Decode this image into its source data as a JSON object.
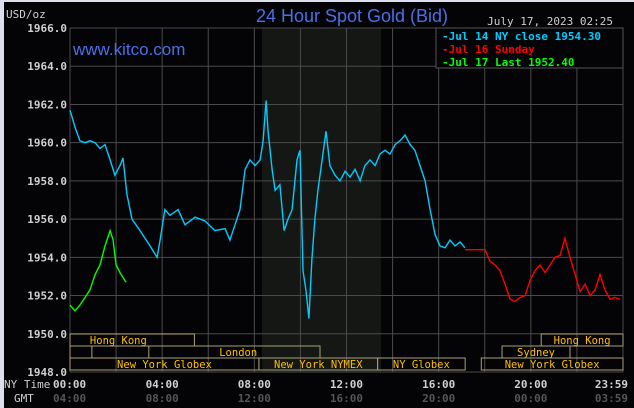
{
  "chart_data": {
    "type": "line",
    "title": "24 Hour Spot Gold (Bid)",
    "watermark": "www.kitco.com",
    "timestamp": "July 17, 2023 02:25",
    "ylabel": "USD/oz",
    "ylim": [
      1948,
      1966
    ],
    "yticks": [
      "1966.0",
      "1964.0",
      "1962.0",
      "1960.0",
      "1958.0",
      "1956.0",
      "1954.0",
      "1952.0",
      "1950.0",
      "1948.0"
    ],
    "xlim_hours": [
      0,
      24
    ],
    "x_row_label": "NY Time",
    "gmt_row_label": "GMT",
    "xticks": [
      {
        "h": 0,
        "ny": "00:00",
        "gmt": "04:00"
      },
      {
        "h": 4,
        "ny": "04:00",
        "gmt": "08:00"
      },
      {
        "h": 8,
        "ny": "08:00",
        "gmt": "12:00"
      },
      {
        "h": 12,
        "ny": "12:00",
        "gmt": "16:00"
      },
      {
        "h": 16,
        "ny": "16:00",
        "gmt": "20:00"
      },
      {
        "h": 20,
        "ny": "20:00",
        "gmt": "00:00"
      },
      {
        "h": 23.98,
        "ny": "23:59",
        "gmt": "03:59"
      }
    ],
    "grid": true,
    "legend_position": "top-right",
    "highlight_hours": [
      8.33,
      13.5
    ],
    "series": [
      {
        "name": "Jul 14 NY close 1954.30",
        "color": "#00ccff",
        "x": [
          0,
          0.22,
          0.43,
          0.65,
          0.87,
          1.09,
          1.3,
          1.52,
          1.74,
          1.95,
          2.17,
          2.3,
          2.47,
          2.69,
          3.04,
          3.47,
          3.78,
          3.91,
          4.12,
          4.34,
          4.69,
          4.99,
          5.43,
          5.86,
          6.29,
          6.73,
          6.94,
          7.16,
          7.38,
          7.6,
          7.81,
          8.03,
          8.25,
          8.38,
          8.51,
          8.59,
          8.77,
          8.9,
          9.11,
          9.29,
          9.46,
          9.64,
          9.85,
          9.98,
          10.11,
          10.24,
          10.37,
          10.5,
          10.63,
          10.76,
          10.94,
          11.11,
          11.28,
          11.5,
          11.72,
          11.94,
          12.15,
          12.37,
          12.59,
          12.8,
          13.02,
          13.24,
          13.45,
          13.67,
          13.89,
          14.11,
          14.32,
          14.54,
          14.76,
          14.97,
          15.19,
          15.41,
          15.63,
          15.84,
          16.06,
          16.28,
          16.49,
          16.71,
          16.93,
          17.14
        ],
        "y": [
          1961.7,
          1960.8,
          1960.1,
          1960.0,
          1960.1,
          1960.0,
          1959.7,
          1959.9,
          1959.1,
          1958.3,
          1958.8,
          1959.2,
          1957.3,
          1956.0,
          1955.4,
          1954.6,
          1954.0,
          1954.9,
          1956.5,
          1956.2,
          1956.5,
          1955.7,
          1956.1,
          1955.9,
          1955.4,
          1955.5,
          1954.9,
          1955.7,
          1956.5,
          1958.6,
          1959.1,
          1958.8,
          1959.1,
          1960.1,
          1962.2,
          1960.7,
          1958.6,
          1957.5,
          1957.8,
          1955.4,
          1956.0,
          1956.5,
          1959.1,
          1959.6,
          1953.3,
          1952.3,
          1950.8,
          1953.9,
          1956.0,
          1957.5,
          1959.1,
          1960.6,
          1958.8,
          1958.3,
          1958.0,
          1958.5,
          1958.2,
          1958.6,
          1958.0,
          1958.8,
          1959.1,
          1958.8,
          1959.4,
          1959.6,
          1959.4,
          1959.9,
          1960.1,
          1960.4,
          1959.9,
          1959.6,
          1958.8,
          1958.0,
          1956.5,
          1955.2,
          1954.6,
          1954.5,
          1954.9,
          1954.6,
          1954.8,
          1954.5
        ]
      },
      {
        "name": "Jul 16 Sunday",
        "color": "#ff0000",
        "x": [
          17.14,
          18.01,
          18.23,
          18.45,
          18.66,
          18.88,
          19.1,
          19.31,
          19.53,
          19.75,
          19.97,
          20.18,
          20.4,
          20.62,
          20.83,
          21.05,
          21.27,
          21.48,
          21.7,
          21.92,
          22.14,
          22.35,
          22.57,
          22.79,
          23.0,
          23.22,
          23.44,
          23.65,
          23.87
        ],
        "y": [
          1954.4,
          1954.4,
          1953.8,
          1953.6,
          1953.3,
          1952.6,
          1951.8,
          1951.7,
          1951.9,
          1952.0,
          1952.8,
          1953.3,
          1953.6,
          1953.2,
          1953.6,
          1954.0,
          1954.1,
          1955.0,
          1954.0,
          1953.1,
          1952.2,
          1952.6,
          1952.0,
          1952.3,
          1953.1,
          1952.3,
          1951.8,
          1951.9,
          1951.8
        ]
      },
      {
        "name": "Jul 17 Last 1952.40",
        "color": "#00ff00",
        "x": [
          0,
          0.22,
          0.43,
          0.65,
          0.87,
          1.09,
          1.3,
          1.52,
          1.74,
          1.87,
          2.0,
          2.17,
          2.43
        ],
        "y": [
          1951.5,
          1951.2,
          1951.5,
          1951.9,
          1952.3,
          1953.1,
          1953.6,
          1954.6,
          1955.4,
          1954.9,
          1953.6,
          1953.2,
          1952.7
        ]
      }
    ],
    "sessions": [
      {
        "label": "Hong Kong",
        "row": 0,
        "start": 0,
        "end": 5.4
      },
      {
        "label": "Hong Kong",
        "row": 0,
        "start": 20.45,
        "end": 24
      },
      {
        "label": "",
        "row": 1,
        "start": 0.95,
        "end": 3.42
      },
      {
        "label": "London",
        "row": 1,
        "start": 0,
        "end": 10.85
      },
      {
        "label": "Sydney",
        "row": 1,
        "start": 18.75,
        "end": 21.7
      },
      {
        "label": "New York Globex",
        "row": 2,
        "start": 0,
        "end": 8.2
      },
      {
        "label": "New York NYMEX",
        "row": 2,
        "start": 8.2,
        "end": 13.35
      },
      {
        "label": "NY Globex",
        "row": 2,
        "start": 13.35,
        "end": 17.15
      },
      {
        "label": "New York Globex",
        "row": 2,
        "start": 17.85,
        "end": 24
      }
    ]
  }
}
